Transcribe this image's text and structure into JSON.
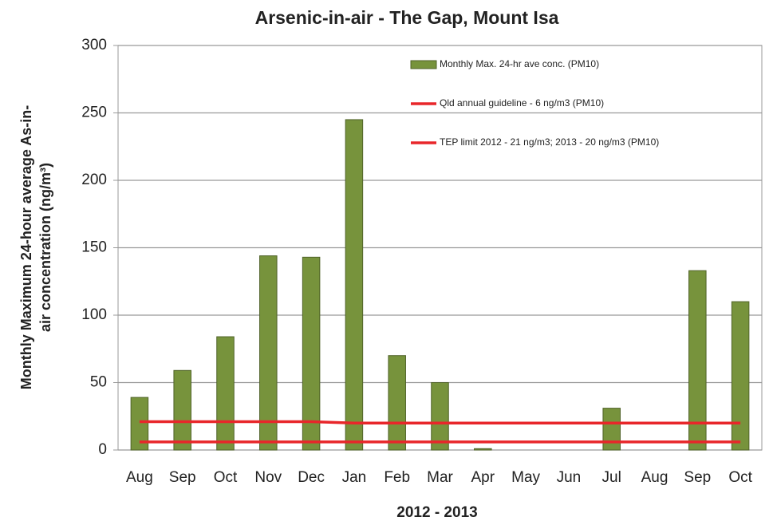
{
  "chart_data": {
    "type": "bar",
    "title": "Arsenic-in-air - The Gap, Mount Isa",
    "xlabel": "2012 - 2013",
    "ylabel": [
      "Monthly Maximum 24-hour average As-in-",
      "air concentration (ng/m³)"
    ],
    "categories": [
      "Aug",
      "Sep",
      "Oct",
      "Nov",
      "Dec",
      "Jan",
      "Feb",
      "Mar",
      "Apr",
      "May",
      "Jun",
      "Jul",
      "Aug",
      "Sep",
      "Oct"
    ],
    "series": [
      {
        "name": "Monthly Max. 24-hr ave conc. (PM10)",
        "color": "#77933c",
        "type": "bar",
        "values": [
          39,
          59,
          84,
          144,
          143,
          245,
          70,
          50,
          1,
          null,
          null,
          31,
          null,
          133,
          110
        ]
      },
      {
        "name": "Qld annual guideline - 6 ng/m3 (PM10)",
        "color": "#e8262a",
        "type": "line",
        "values": [
          6,
          6,
          6,
          6,
          6,
          6,
          6,
          6,
          6,
          6,
          6,
          6,
          6,
          6,
          6
        ]
      },
      {
        "name": "TEP limit 2012 - 21 ng/m3; 2013 - 20 ng/m3 (PM10)",
        "color": "#e8262a",
        "type": "line",
        "values": [
          21,
          21,
          21,
          21,
          21,
          20,
          20,
          20,
          20,
          20,
          20,
          20,
          20,
          20,
          20
        ]
      }
    ],
    "ylim": [
      0,
      300
    ],
    "yticks": [
      0,
      50,
      100,
      150,
      200,
      250,
      300
    ],
    "grid": true,
    "legend": "top-right"
  }
}
